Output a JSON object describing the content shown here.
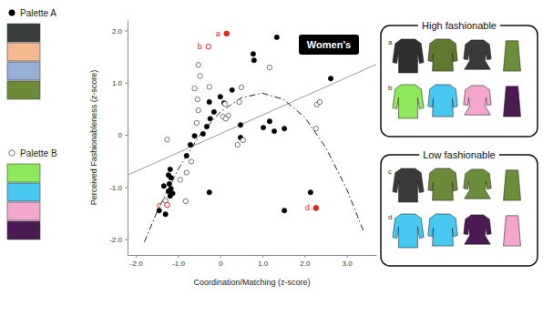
{
  "chart_data": {
    "type": "scatter",
    "title": "Women's",
    "x_label": "Coordination/Matching (z-score)",
    "y_label": "Perceived Fashionableness (z-score)",
    "xlim": [
      -2.2,
      3.7
    ],
    "ylim": [
      -2.3,
      2.2
    ],
    "xticks": [
      {
        "value": -2,
        "label": "-2.0"
      },
      {
        "value": -1,
        "label": "-1.0"
      },
      0,
      {
        "value": 1,
        "label": "1.0"
      },
      {
        "value": 2,
        "label": "2.0"
      },
      {
        "value": 3,
        "label": "3.0"
      }
    ],
    "yticks": [
      {
        "value": -2,
        "label": "-2.0"
      },
      {
        "value": -1,
        "label": "-1.0"
      },
      0,
      {
        "value": 1,
        "label": "1.0"
      },
      {
        "value": 2,
        "label": "2.0"
      }
    ],
    "legend": "left",
    "series": [
      {
        "name": "Palette A",
        "color": "#000000",
        "marker": "filled",
        "palette": [
          "#3b3f3c",
          "#f5b890",
          "#98afd6",
          "#6b8a3a"
        ],
        "x": [
          -1.19,
          -1.23,
          -1.17,
          -1.21,
          -1.17,
          -1.23,
          -1.13,
          -1.19,
          -1.34,
          -1.45,
          -1.3,
          -0.8,
          -0.71,
          -0.61,
          -0.41,
          -0.32,
          -0.24,
          -0.15,
          -0.26,
          0.0,
          0.09,
          0.28,
          0.48,
          0.48,
          -0.26,
          1.02,
          1.17,
          1.28,
          1.52,
          1.34,
          0.78,
          0.8,
          2.62,
          2.14,
          1.52
        ],
        "values": [
          -0.66,
          -0.77,
          -0.82,
          -0.94,
          -1.03,
          -1.08,
          -1.12,
          -1.17,
          -0.98,
          -1.45,
          -1.52,
          -0.4,
          -0.19,
          -0.02,
          0.02,
          0.16,
          0.31,
          0.44,
          0.63,
          0.73,
          0.61,
          0.86,
          0.19,
          -0.05,
          -1.1,
          0.14,
          0.26,
          0.07,
          0.12,
          1.87,
          1.55,
          1.43,
          1.08,
          -1.1,
          -1.45
        ]
      },
      {
        "name": "Palette B",
        "color": "#555555",
        "marker": "hollow",
        "palette": [
          "#8fe85c",
          "#46c8f0",
          "#f3a7cf",
          "#4b1a52"
        ],
        "x": [
          -0.52,
          -0.48,
          -0.26,
          -0.61,
          -0.54,
          -0.52,
          -0.56,
          0.11,
          0.19,
          0.06,
          0.13,
          0.45,
          0.5,
          1.17,
          0.54,
          0.41,
          -1.26,
          -0.69,
          -0.8,
          -0.82,
          -1.3,
          2.29,
          2.36,
          2.27,
          -0.95
        ],
        "values": [
          1.34,
          1.13,
          0.92,
          0.89,
          0.68,
          0.47,
          0.23,
          0.59,
          0.37,
          0.35,
          0.31,
          0.63,
          0.91,
          1.29,
          -0.1,
          -0.19,
          -0.09,
          -0.51,
          -0.72,
          -1.27,
          -1.26,
          0.58,
          0.63,
          0.12,
          -0.86
        ]
      },
      {
        "type": "line",
        "line_style": "solid",
        "color": "#9a9a9a",
        "x": [
          -2.2,
          3.7
        ],
        "values": [
          -0.77,
          1.35
        ]
      },
      {
        "type": "line",
        "line_style": "dashdot",
        "color": "#222222",
        "x": [
          -1.8,
          -1.5,
          -1.0,
          -0.5,
          0.0,
          0.5,
          1.0,
          1.5,
          2.0,
          2.5,
          3.0,
          3.4
        ],
        "values": [
          -2.05,
          -1.47,
          -0.66,
          -0.02,
          0.44,
          0.71,
          0.8,
          0.68,
          0.34,
          -0.24,
          -1.04,
          -1.85
        ]
      }
    ],
    "annotations": [
      {
        "label": "a",
        "x": 0.15,
        "y": 1.94,
        "color": "#e8231c",
        "marker": "filled"
      },
      {
        "label": "b",
        "x": -0.28,
        "y": 1.69,
        "color": "#e8231c",
        "marker": "hollow"
      },
      {
        "label": "c",
        "x": -1.26,
        "y": -1.34,
        "color": "#e8231c",
        "marker": "hollow"
      },
      {
        "label": "d",
        "x": 2.27,
        "y": -1.4,
        "color": "#e8231c",
        "marker": "filled"
      }
    ],
    "panels": [
      {
        "title": "High fashionable",
        "rows": [
          {
            "label": "a",
            "items": [
              "#2f2f2f",
              "#5f7a2c",
              "#3a3a3a",
              "#6b8e3a"
            ]
          },
          {
            "label": "b",
            "items": [
              "#8fe85c",
              "#46c8f0",
              "#f3a7cf",
              "#4b1a52"
            ]
          }
        ]
      },
      {
        "title": "Low fashionable",
        "rows": [
          {
            "label": "c",
            "items": [
              "#3a3a3a",
              "#6b8a3a",
              "#6b8e3a",
              "#6b8e3a"
            ]
          },
          {
            "label": "d",
            "items": [
              "#46c8f0",
              "#46c8f0",
              "#4b1a52",
              "#f3a7cf"
            ]
          }
        ]
      }
    ]
  }
}
